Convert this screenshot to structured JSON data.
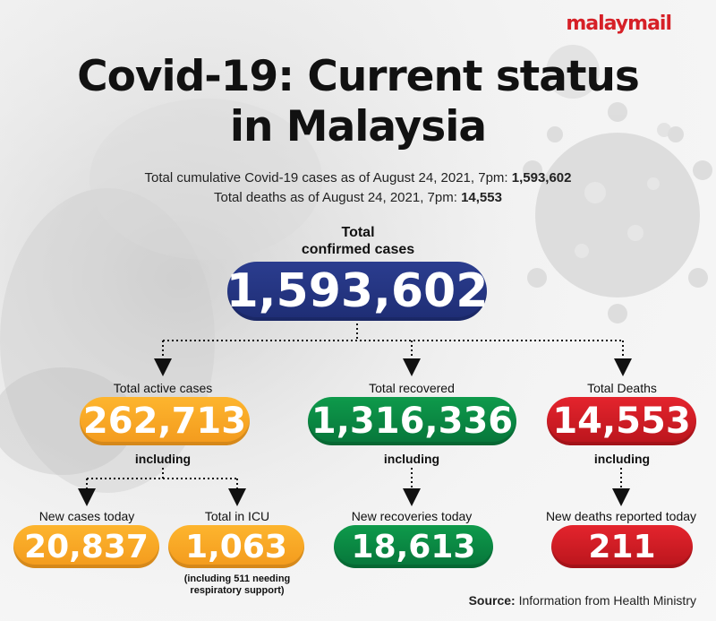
{
  "brand": {
    "logo": "malaymail"
  },
  "title": {
    "line1": "Covid-19: Current status",
    "line2": "in Malaysia"
  },
  "summary": {
    "cumulative_label": "Total cumulative Covid-19 cases as of August 24, 2021, 7pm:",
    "cumulative_value": "1,593,602",
    "deaths_label": "Total deaths as of August 24, 2021, 7pm:",
    "deaths_value": "14,553"
  },
  "total_confirmed": {
    "label_line1": "Total",
    "label_line2": "confirmed cases",
    "value": "1,593,602"
  },
  "active": {
    "label": "Total active cases",
    "value": "262,713",
    "including": "including",
    "new_cases": {
      "label": "New cases today",
      "value": "20,837"
    },
    "icu": {
      "label": "Total in ICU",
      "value": "1,063",
      "note_line1": "(including 511 needing",
      "note_line2": "respiratory support)"
    }
  },
  "recovered": {
    "label": "Total recovered",
    "value": "1,316,336",
    "including": "including",
    "new": {
      "label": "New recoveries today",
      "value": "18,613"
    }
  },
  "deaths": {
    "label": "Total Deaths",
    "value": "14,553",
    "including": "including",
    "new": {
      "label": "New deaths reported today",
      "value": "211"
    }
  },
  "source": {
    "label": "Source:",
    "text": "Information from Health Ministry"
  },
  "colors": {
    "navy": "#1e2d74",
    "orange": "#f7a823",
    "green": "#0a8a43",
    "red": "#d11d24",
    "logo_red": "#d62027"
  }
}
